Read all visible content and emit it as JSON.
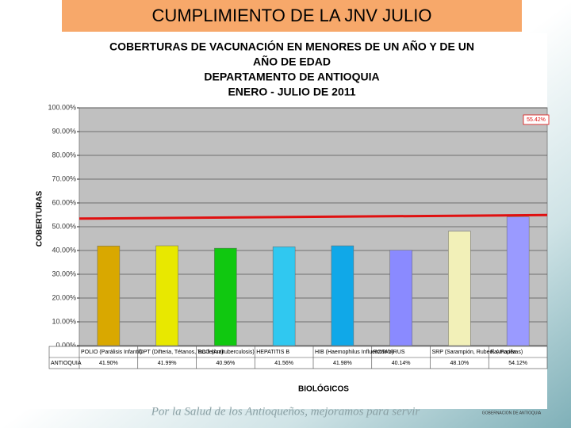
{
  "header": "CUMPLIMIENTO DE LA JNV JULIO",
  "footer": {
    "motto": "Por la Salud de los Antioqueños, mejoramos para servir",
    "logo": "GOBERNACION DE ANTIOQUIA"
  },
  "chart_data": {
    "type": "bar",
    "title": [
      "COBERTURAS DE VACUNACIÓN  EN MENORES DE UN AÑO Y DE UN",
      "AÑO DE EDAD",
      "DEPARTAMENTO DE ANTIOQUIA",
      "ENERO - JULIO DE 2011"
    ],
    "x_label": "BIOLÓGICOS",
    "y_label": "COBERTURAS",
    "categories": [
      "POLIO (Parálisis Infantil)",
      "DPT (Difteria, Tétanos, Tos ferina)",
      "BCG (Antituberculosis)",
      "HEPATITIS B",
      "HIB (Haemophilus Influenzae b)",
      "ROTAVIRUS",
      "SRP (Sarampión, Rubeola, Paperas)",
      "F. Amarilla"
    ],
    "series": [
      {
        "name": "ANTIOQUIA",
        "values": [
          41.9,
          41.99,
          40.96,
          41.56,
          41.98,
          40.14,
          48.1,
          54.12
        ],
        "value_labels": [
          "41.90%",
          "41.99%",
          "40.96%",
          "41.56%",
          "41.98%",
          "40.14%",
          "48.10%",
          "54.12%"
        ],
        "colors": [
          "#d9a800",
          "#e8e800",
          "#10c810",
          "#30c8f0",
          "#10a8e8",
          "#8a8aff",
          "#f2f0b8",
          "#9a9aff"
        ]
      }
    ],
    "reference_line": {
      "label": "55.42%",
      "values": [
        53.4,
        54.9
      ],
      "color": "#e01010"
    },
    "ylim": [
      0,
      100
    ],
    "yticks": [
      {
        "value": 0,
        "label": "0.00%"
      },
      {
        "value": 10,
        "label": "10.00%"
      },
      {
        "value": 20,
        "label": "20.00%"
      },
      {
        "value": 30,
        "label": "30.00%"
      },
      {
        "value": 40,
        "label": "40.00%"
      },
      {
        "value": 50,
        "label": "50.00%"
      },
      {
        "value": 60,
        "label": "60.00%"
      },
      {
        "value": 70,
        "label": "70.00%"
      },
      {
        "value": 80,
        "label": "80.00%"
      },
      {
        "value": 90,
        "label": "90.00%"
      },
      {
        "value": 100,
        "label": "100.00%"
      }
    ],
    "grid": true
  }
}
